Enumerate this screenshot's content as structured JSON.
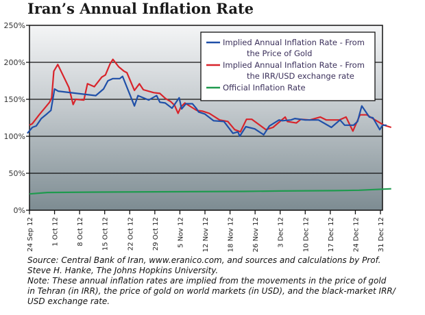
{
  "title": "Iran’s Annual Inflation Rate",
  "chart_data": {
    "type": "line",
    "title": "Iran’s Annual Inflation Rate",
    "xlabel": "",
    "ylabel": "",
    "ylim": [
      0,
      250
    ],
    "y_ticks": [
      0,
      50,
      100,
      150,
      200,
      250
    ],
    "y_tick_labels": [
      "0%",
      "50%",
      "100%",
      "150%",
      "200%",
      "250%"
    ],
    "x_range_days": [
      0,
      98
    ],
    "x_ticks": [
      {
        "label": "24 Sep 12",
        "day": 0
      },
      {
        "label": "1 Oct 12",
        "day": 7
      },
      {
        "label": "8 Oct 12",
        "day": 14
      },
      {
        "label": "15 Oct 12",
        "day": 21
      },
      {
        "label": "22 Oct 12",
        "day": 28
      },
      {
        "label": "29 Oct 12",
        "day": 35
      },
      {
        "label": "5 Nov 12",
        "day": 42
      },
      {
        "label": "12 Nov 12",
        "day": 49
      },
      {
        "label": "18 Nov 12",
        "day": 56
      },
      {
        "label": "26 Nov 12",
        "day": 63
      },
      {
        "label": "3 Dec 12",
        "day": 70
      },
      {
        "label": "10 Dec 12",
        "day": 77
      },
      {
        "label": "17 Dec 12",
        "day": 84
      },
      {
        "label": "24 Dec 12",
        "day": 91
      },
      {
        "label": "31 Dec 12",
        "day": 98
      }
    ],
    "grid": "horizontal",
    "legend_position": "top-right",
    "series": [
      {
        "name": "Implied Annual Inflation Rate - From the Price of Gold",
        "legend_lines": [
          "Implied Annual Inflation Rate - From",
          "the Price of Gold"
        ],
        "color": "#1f4fa8",
        "points": [
          [
            -0.6,
            104
          ],
          [
            0.8,
            112
          ],
          [
            1.9,
            114
          ],
          [
            3.3,
            124
          ],
          [
            4.8,
            130
          ],
          [
            6,
            135
          ],
          [
            7,
            164
          ],
          [
            8,
            161
          ],
          [
            18.5,
            155
          ],
          [
            20.7,
            164
          ],
          [
            21.9,
            175
          ],
          [
            23.3,
            178
          ],
          [
            25.2,
            178
          ],
          [
            26,
            181
          ],
          [
            29.3,
            141
          ],
          [
            30.3,
            155
          ],
          [
            33.3,
            149
          ],
          [
            35.5,
            155
          ],
          [
            36.4,
            146
          ],
          [
            37.9,
            145
          ],
          [
            39.8,
            138
          ],
          [
            41.8,
            152
          ],
          [
            42.5,
            137
          ],
          [
            43.7,
            144
          ],
          [
            45.5,
            144
          ],
          [
            46.7,
            137
          ],
          [
            47.2,
            133
          ],
          [
            49,
            130
          ],
          [
            51.4,
            121
          ],
          [
            54.3,
            120
          ],
          [
            56.8,
            104
          ],
          [
            58.2,
            106
          ],
          [
            58.7,
            100
          ],
          [
            60.4,
            113
          ],
          [
            62.9,
            110
          ],
          [
            65.4,
            102
          ],
          [
            67,
            114
          ],
          [
            69.7,
            122
          ],
          [
            70.6,
            121
          ],
          [
            73,
            122
          ],
          [
            74.1,
            124
          ],
          [
            77,
            122
          ],
          [
            80.7,
            122
          ],
          [
            84.3,
            112
          ],
          [
            86.7,
            122
          ],
          [
            88,
            115
          ],
          [
            90.5,
            115
          ],
          [
            91.6,
            120
          ],
          [
            92.8,
            141
          ],
          [
            94.9,
            126
          ],
          [
            95.9,
            125
          ],
          [
            97.8,
            109
          ],
          [
            98.6,
            115
          ],
          [
            99.7,
            115
          ]
        ]
      },
      {
        "name": "Implied Annual Inflation Rate - From the IRR/USD exchange rate",
        "legend_lines": [
          "Implied Annual Inflation Rate - From",
          "the IRR/USD exchange rate"
        ],
        "color": "#d8232a",
        "points": [
          [
            0,
            115
          ],
          [
            0.8,
            117
          ],
          [
            2.7,
            129
          ],
          [
            4.4,
            139
          ],
          [
            5.6,
            146
          ],
          [
            6.2,
            152
          ],
          [
            6.8,
            188
          ],
          [
            7.9,
            197
          ],
          [
            11,
            166
          ],
          [
            12.2,
            143
          ],
          [
            12.9,
            150
          ],
          [
            15.2,
            149
          ],
          [
            16.2,
            171
          ],
          [
            18.1,
            167
          ],
          [
            20.2,
            180
          ],
          [
            21.2,
            183
          ],
          [
            22.5,
            198
          ],
          [
            23.3,
            204
          ],
          [
            24.9,
            194
          ],
          [
            26.4,
            188
          ],
          [
            27.2,
            186
          ],
          [
            29.3,
            162
          ],
          [
            30.7,
            171
          ],
          [
            31.8,
            163
          ],
          [
            34.7,
            159
          ],
          [
            36.4,
            158
          ],
          [
            38,
            151
          ],
          [
            39.4,
            147
          ],
          [
            40.5,
            142
          ],
          [
            41.5,
            131
          ],
          [
            42.3,
            140
          ],
          [
            43.4,
            145
          ],
          [
            45.7,
            138
          ],
          [
            46.7,
            135
          ],
          [
            48.3,
            134
          ],
          [
            50.2,
            131
          ],
          [
            53.1,
            122
          ],
          [
            55.4,
            120
          ],
          [
            57.3,
            109
          ],
          [
            58.9,
            106
          ],
          [
            60.6,
            123
          ],
          [
            62.1,
            123
          ],
          [
            66,
            109
          ],
          [
            68,
            112
          ],
          [
            71.4,
            126
          ],
          [
            72,
            120
          ],
          [
            74.5,
            118
          ],
          [
            75.8,
            123
          ],
          [
            78.3,
            122
          ],
          [
            81.2,
            126
          ],
          [
            82.9,
            122
          ],
          [
            86.5,
            122
          ],
          [
            88.4,
            126
          ],
          [
            90.3,
            107
          ],
          [
            92.3,
            129
          ],
          [
            94.2,
            129
          ],
          [
            96.5,
            122
          ],
          [
            99,
            115
          ],
          [
            101,
            112
          ]
        ]
      },
      {
        "name": "Official Inflation Rate",
        "legend_lines": [
          "Official Inflation Rate"
        ],
        "color": "#1e9a4e",
        "points": [
          [
            0,
            22
          ],
          [
            5,
            24
          ],
          [
            20,
            24.5
          ],
          [
            40,
            25
          ],
          [
            60,
            25.5
          ],
          [
            70,
            26
          ],
          [
            85,
            26.5
          ],
          [
            92,
            27
          ],
          [
            101,
            29
          ]
        ]
      }
    ]
  },
  "caption": {
    "source": "Source: Central Bank of Iran, www.eranico.com, and sources and calculations by Prof.\nSteve H. Hanke, The Johns Hopkins University.",
    "note": "Note: These annual inflation rates are implied from the movements in the price of gold\nin Tehran (in IRR), the price of gold on world markets (in USD), and the black-market IRR/\nUSD exchange rate."
  }
}
